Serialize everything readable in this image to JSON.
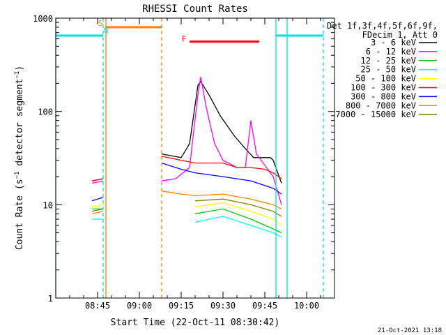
{
  "chart_data": {
    "type": "line",
    "title": "RHESSI Count Rates",
    "xlabel": "Start Time (22-Oct-11 08:30:42)",
    "ylabel": "Count Rate (s⁻¹ detector segment⁻¹)",
    "y_scale": "log",
    "ylim": [
      1,
      1000
    ],
    "xlim": [
      "08:30",
      "10:10"
    ],
    "x_ticks": [
      "08:45",
      "09:00",
      "09:15",
      "09:30",
      "09:45",
      "10:00"
    ],
    "y_ticks": [
      "1",
      "10",
      "100",
      "1000"
    ],
    "legend_position": "top-right",
    "legend_header": [
      "Det 1f,3f,4f,5f,6f,9f,",
      "FDecim 1, Att 0"
    ],
    "timestamp": "21-Oct-2021 13:18",
    "colors": {
      "3 - 6 keV": "#000000",
      "6 - 12 keV": "#ff00ff",
      "12 - 25 keV": "#00cc00",
      "25 - 50 keV": "#00ffff",
      "50 - 100 keV": "#ffff00",
      "100 - 300 keV": "#ff0000",
      "300 - 800 keV": "#0000ff",
      "800 - 7000 keV": "#ff8000",
      "7000 - 15000 keV": "#808000"
    },
    "series": [
      {
        "name": "3 - 6 keV",
        "points": [
          [
            "08:43",
            18
          ],
          [
            "08:47",
            19
          ],
          [
            "09:08",
            35
          ],
          [
            "09:15",
            32
          ],
          [
            "09:18",
            45
          ],
          [
            "09:21",
            190
          ],
          [
            "09:22",
            210
          ],
          [
            "09:25",
            150
          ],
          [
            "09:29",
            90
          ],
          [
            "09:34",
            55
          ],
          [
            "09:38",
            40
          ],
          [
            "09:41",
            32
          ],
          [
            "09:44",
            32
          ],
          [
            "09:47",
            32
          ],
          [
            "09:48",
            30
          ],
          [
            "09:51",
            17
          ]
        ]
      },
      {
        "name": "6 - 12 keV",
        "points": [
          [
            "08:43",
            17
          ],
          [
            "08:47",
            18
          ],
          [
            "09:08",
            18
          ],
          [
            "09:13",
            19
          ],
          [
            "09:18",
            25
          ],
          [
            "09:21",
            150
          ],
          [
            "09:22",
            235
          ],
          [
            "09:24",
            110
          ],
          [
            "09:27",
            45
          ],
          [
            "09:30",
            30
          ],
          [
            "09:35",
            25
          ],
          [
            "09:38",
            25
          ],
          [
            "09:40",
            80
          ],
          [
            "09:42",
            35
          ],
          [
            "09:48",
            20
          ],
          [
            "09:51",
            10
          ]
        ]
      },
      {
        "name": "12 - 25 keV",
        "points": [
          [
            "08:43",
            9
          ],
          [
            "08:47",
            9
          ],
          [
            "09:08",
            8.5
          ],
          [
            "09:20",
            8
          ],
          [
            "09:30",
            9
          ],
          [
            "09:40",
            7
          ],
          [
            "09:48",
            5.5
          ],
          [
            "09:51",
            5
          ]
        ]
      },
      {
        "name": "25 - 50 keV",
        "points": [
          [
            "08:43",
            7
          ],
          [
            "08:47",
            7
          ],
          [
            "09:08",
            7.5
          ],
          [
            "09:20",
            6.5
          ],
          [
            "09:30",
            7.5
          ],
          [
            "09:40",
            6
          ],
          [
            "09:48",
            5
          ],
          [
            "09:51",
            4.5
          ]
        ]
      },
      {
        "name": "50 - 100 keV",
        "points": [
          [
            "08:43",
            9.5
          ],
          [
            "08:47",
            10
          ],
          [
            "09:08",
            10
          ],
          [
            "09:20",
            9.5
          ],
          [
            "09:30",
            10.5
          ],
          [
            "09:40",
            8.5
          ],
          [
            "09:48",
            7
          ],
          [
            "09:51",
            6
          ]
        ]
      },
      {
        "name": "100 - 300 keV",
        "points": [
          [
            "08:43",
            18
          ],
          [
            "08:47",
            19
          ],
          [
            "09:08",
            33
          ],
          [
            "09:15",
            30
          ],
          [
            "09:20",
            28
          ],
          [
            "09:30",
            28
          ],
          [
            "09:35",
            25
          ],
          [
            "09:40",
            25
          ],
          [
            "09:45",
            24
          ],
          [
            "09:48",
            22
          ],
          [
            "09:51",
            19
          ]
        ]
      },
      {
        "name": "300 - 800 keV",
        "points": [
          [
            "08:43",
            11
          ],
          [
            "08:47",
            12
          ],
          [
            "09:08",
            28
          ],
          [
            "09:15",
            24
          ],
          [
            "09:20",
            22
          ],
          [
            "09:30",
            20
          ],
          [
            "09:40",
            18
          ],
          [
            "09:48",
            15
          ],
          [
            "09:51",
            13
          ]
        ]
      },
      {
        "name": "800 - 7000 keV",
        "points": [
          [
            "08:43",
            8
          ],
          [
            "08:47",
            8.5
          ],
          [
            "09:08",
            14
          ],
          [
            "09:15",
            13
          ],
          [
            "09:20",
            12.5
          ],
          [
            "09:30",
            13
          ],
          [
            "09:40",
            11.5
          ],
          [
            "09:48",
            10
          ],
          [
            "09:51",
            9
          ]
        ]
      },
      {
        "name": "7000 - 15000 keV",
        "points": [
          [
            "08:43",
            8.5
          ],
          [
            "08:47",
            9
          ],
          [
            "09:08",
            12
          ],
          [
            "09:20",
            11
          ],
          [
            "09:30",
            11.5
          ],
          [
            "09:40",
            10
          ],
          [
            "09:48",
            8.5
          ],
          [
            "09:51",
            7.5
          ]
        ]
      }
    ],
    "flag_lines": [
      {
        "time": "08:30",
        "style": "solid",
        "color": "#00e0e0"
      },
      {
        "time": "08:47",
        "style": "dashed",
        "color": "#00e0e0"
      },
      {
        "time": "08:48",
        "style": "solid",
        "color": "#ff8000"
      },
      {
        "time": "09:08",
        "style": "dashed",
        "color": "#ff8000"
      },
      {
        "time": "09:49",
        "style": "solid",
        "color": "#00e0e0"
      },
      {
        "time": "09:53",
        "style": "solid",
        "color": "#00e0e0"
      },
      {
        "time": "10:06",
        "style": "dashed",
        "color": "#00e0e0"
      }
    ],
    "flag_bars": [
      {
        "start": "08:30",
        "end": "08:47",
        "value": 650,
        "color": "#00e0e0"
      },
      {
        "start": "08:48",
        "end": "09:08",
        "value": 800,
        "color": "#ff8000"
      },
      {
        "start": "09:18",
        "end": "09:43",
        "value": 560,
        "color": "#ff0000"
      },
      {
        "start": "09:49",
        "end": "10:06",
        "value": 650,
        "color": "#00e0e0"
      }
    ],
    "annotations": [
      {
        "text": "S",
        "time": "08:46",
        "value": 830,
        "color": "#ff8000"
      },
      {
        "text": "N",
        "time": "08:48",
        "value": 690,
        "color": "#00e0e0"
      },
      {
        "text": "F",
        "time": "09:16",
        "value": 560,
        "color": "#ff0000"
      }
    ]
  }
}
